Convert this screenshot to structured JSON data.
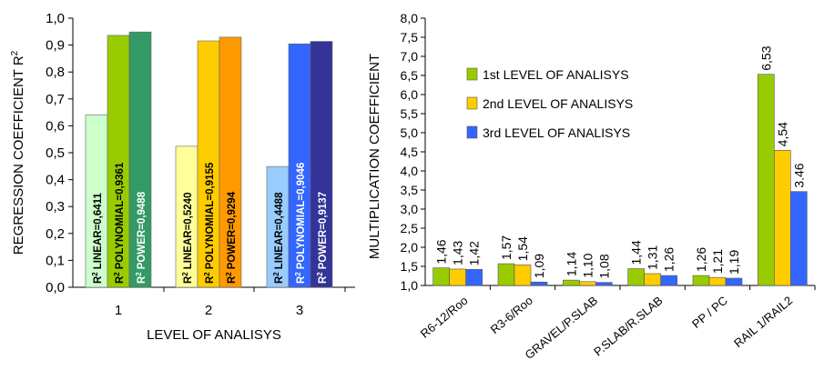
{
  "chart_data": [
    {
      "type": "bar",
      "xlabel": "LEVEL OF ANALISYS",
      "ylabel": "REGRESSION COEFFICIENT R",
      "ylabel_sup": "2",
      "ylim": [
        0,
        1.0
      ],
      "yticks": [
        "0,0",
        "0,1",
        "0,2",
        "0,3",
        "0,4",
        "0,5",
        "0,6",
        "0,7",
        "0,8",
        "0,9",
        "1,0"
      ],
      "categories": [
        "1",
        "2",
        "3"
      ],
      "groups": [
        {
          "category": "1",
          "bars": [
            {
              "fit": "LINEAR",
              "value": 0.6411,
              "label": "LINEAR=0,6411",
              "color": "#ccffcc",
              "text_color": "#000000"
            },
            {
              "fit": "POLYNOMIAL",
              "value": 0.9361,
              "label": "POLYNOMIAL=0,9361",
              "color": "#99cc00",
              "text_color": "#000000"
            },
            {
              "fit": "POWER",
              "value": 0.9488,
              "label": "POWER=0,9488",
              "color": "#339966",
              "text_color": "#ffffff"
            }
          ]
        },
        {
          "category": "2",
          "bars": [
            {
              "fit": "LINEAR",
              "value": 0.524,
              "label": "LINEAR=0,5240",
              "color": "#ffff99",
              "text_color": "#000000"
            },
            {
              "fit": "POLYNOMIAL",
              "value": 0.9155,
              "label": "POLYNOMIAL=0,9155",
              "color": "#ffcc00",
              "text_color": "#000000"
            },
            {
              "fit": "POWER",
              "value": 0.9294,
              "label": "POWER=0,9294",
              "color": "#ff9900",
              "text_color": "#000000"
            }
          ]
        },
        {
          "category": "3",
          "bars": [
            {
              "fit": "LINEAR",
              "value": 0.4488,
              "label": "LINEAR=0,4488",
              "color": "#99ccff",
              "text_color": "#000000"
            },
            {
              "fit": "POLYNOMIAL",
              "value": 0.9046,
              "label": "POLYNOMIAL=0,9046",
              "color": "#3366ff",
              "text_color": "#ffffff"
            },
            {
              "fit": "POWER",
              "value": 0.9137,
              "label": "POWER=0,9137",
              "color": "#333399",
              "text_color": "#ffffff"
            }
          ]
        }
      ],
      "label_prefix": "R",
      "label_prefix_sup": "2",
      "grid": false
    },
    {
      "type": "bar",
      "ylabel": "MULTIPLICATION COEFFICIENT",
      "ylim": [
        1.0,
        8.0
      ],
      "yticks": [
        "1,0",
        "1,5",
        "2,0",
        "2,5",
        "3,0",
        "3,5",
        "4,0",
        "4,5",
        "5,0",
        "5,5",
        "6,0",
        "6,5",
        "7,0",
        "7,5",
        "8,0"
      ],
      "categories": [
        "R6-12/Roo",
        "R3-6/Roo",
        "GRAVEL/P.SLAB",
        "P.SLAB/R.SLAB",
        "PP / PC",
        "RAIL 1/RAIL2"
      ],
      "series": [
        {
          "name": "1st LEVEL OF ANALISYS",
          "color": "#99cc00",
          "values": [
            1.46,
            1.57,
            1.14,
            1.44,
            1.26,
            6.53
          ],
          "labels": [
            "1,46",
            "1,57",
            "1,14",
            "1,44",
            "1,26",
            "6,53"
          ]
        },
        {
          "name": "2nd LEVEL OF ANALISYS",
          "color": "#ffcc00",
          "values": [
            1.43,
            1.54,
            1.1,
            1.31,
            1.21,
            4.54
          ],
          "labels": [
            "1,43",
            "1,54",
            "1,10",
            "1,31",
            "1,21",
            "4,54"
          ]
        },
        {
          "name": "3rd LEVEL OF ANALISYS",
          "color": "#3366ff",
          "values": [
            1.42,
            1.09,
            1.08,
            1.26,
            1.19,
            3.46
          ],
          "labels": [
            "1,42",
            "1,09",
            "1,08",
            "1,26",
            "1,19",
            "3.46"
          ]
        }
      ],
      "legend": "upper-left inside plot",
      "grid": false
    }
  ]
}
